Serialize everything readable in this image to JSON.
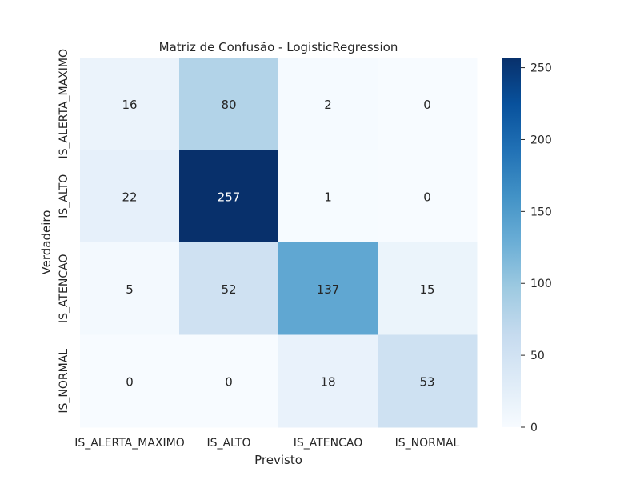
{
  "chart_data": {
    "type": "heatmap",
    "title": "Matriz de Confusão - LogisticRegression",
    "xlabel": "Previsto",
    "ylabel": "Verdadeiro",
    "x_categories": [
      "IS_ALERTA_MAXIMO",
      "IS_ALTO",
      "IS_ATENCAO",
      "IS_NORMAL"
    ],
    "y_categories": [
      "IS_ALERTA_MAXIMO",
      "IS_ALTO",
      "IS_ATENCAO",
      "IS_NORMAL"
    ],
    "values": [
      [
        16,
        80,
        2,
        0
      ],
      [
        22,
        257,
        1,
        0
      ],
      [
        5,
        52,
        137,
        15
      ],
      [
        0,
        0,
        18,
        53
      ]
    ],
    "colormap": "Blues",
    "colorbar": {
      "range": [
        0,
        257
      ],
      "ticks": [
        0,
        50,
        100,
        150,
        200,
        250
      ]
    }
  }
}
